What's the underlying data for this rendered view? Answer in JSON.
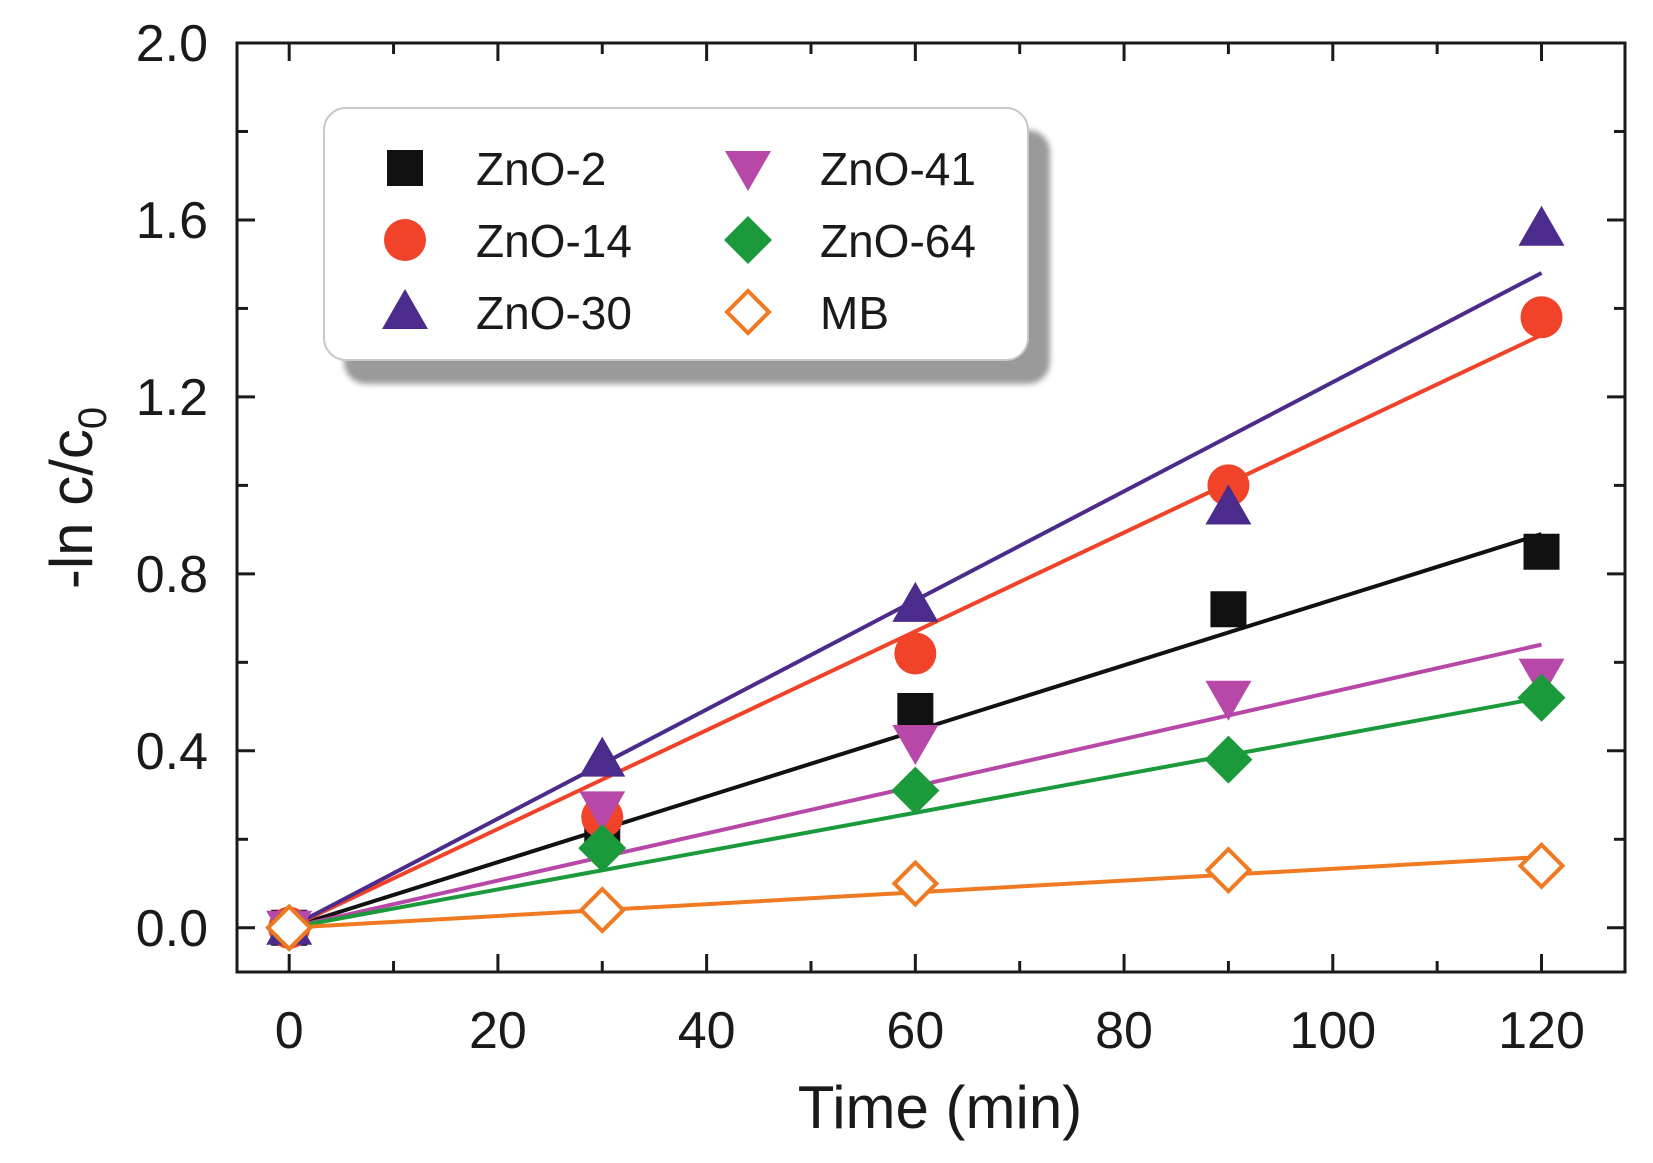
{
  "chart_data": {
    "type": "scatter",
    "title": "",
    "xlabel": "Time   (min)",
    "ylabel_main": "-ln c/c",
    "ylabel_sub": "0",
    "xlim": [
      -5,
      128
    ],
    "ylim": [
      -0.1,
      2.0
    ],
    "xticks": [
      0,
      20,
      40,
      60,
      80,
      100,
      120
    ],
    "xtick_labels": [
      "0",
      "20",
      "40",
      "60",
      "80",
      "100",
      "120"
    ],
    "yticks": [
      0.0,
      0.4,
      0.8,
      1.2,
      1.6,
      2.0
    ],
    "ytick_labels": [
      "0.0",
      "0.4",
      "0.8",
      "1.2",
      "1.6",
      "2.0"
    ],
    "grid": false,
    "legend_position": "top-left",
    "x": [
      0,
      30,
      60,
      90,
      120
    ],
    "series": [
      {
        "name": "ZnO-2",
        "marker": "square",
        "color": "#111111",
        "filled": true,
        "values": [
          0.0,
          0.22,
          0.49,
          0.72,
          0.85
        ],
        "fit_end": 0.89
      },
      {
        "name": "ZnO-14",
        "marker": "circle",
        "color": "#f0432a",
        "filled": true,
        "values": [
          0.0,
          0.25,
          0.62,
          1.0,
          1.38
        ],
        "fit_end": 1.34
      },
      {
        "name": "ZnO-30",
        "marker": "triangle-up",
        "color": "#4b2c8c",
        "filled": true,
        "values": [
          0.0,
          0.38,
          0.73,
          0.95,
          1.58
        ],
        "fit_end": 1.48
      },
      {
        "name": "ZnO-41",
        "marker": "triangle-down",
        "color": "#b848a8",
        "filled": true,
        "values": [
          0.0,
          0.27,
          0.42,
          0.52,
          0.57
        ],
        "fit_end": 0.64
      },
      {
        "name": "ZnO-64",
        "marker": "diamond",
        "color": "#1a9a3a",
        "filled": true,
        "values": [
          0.0,
          0.18,
          0.31,
          0.38,
          0.52
        ],
        "fit_end": 0.52
      },
      {
        "name": "MB",
        "marker": "diamond-open",
        "color": "#f07a22",
        "filled": false,
        "values": [
          0.0,
          0.04,
          0.1,
          0.13,
          0.14
        ],
        "fit_end": 0.16
      }
    ]
  }
}
